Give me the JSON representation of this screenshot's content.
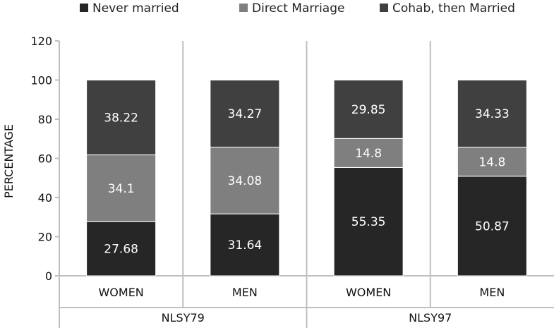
{
  "chart_data": {
    "type": "bar",
    "stacked": true,
    "ylabel": "PERCENTAGE",
    "ylim": [
      0,
      120
    ],
    "yticks": [
      "0",
      "20",
      "40",
      "60",
      "80",
      "100",
      "120"
    ],
    "grid": false,
    "legend_position": "top",
    "categories": [
      "WOMEN",
      "MEN",
      "WOMEN",
      "MEN"
    ],
    "groups": [
      {
        "label": "NLSY79",
        "categories": [
          0,
          1
        ]
      },
      {
        "label": "NLSY97",
        "categories": [
          2,
          3
        ]
      }
    ],
    "series": [
      {
        "name": "Never married",
        "color": "#262626",
        "values": [
          27.68,
          31.64,
          55.35,
          50.87
        ],
        "labels": [
          "27.68",
          "31.64",
          "55.35",
          "50.87"
        ]
      },
      {
        "name": "Direct Marriage",
        "color": "#7f7f7f",
        "values": [
          34.1,
          34.08,
          14.8,
          14.8
        ],
        "labels": [
          "34.1",
          "34.08",
          "14.8",
          "14.8"
        ]
      },
      {
        "name": "Cohab, then Married",
        "color": "#404040",
        "values": [
          38.22,
          34.27,
          29.85,
          34.33
        ],
        "labels": [
          "38.22",
          "34.27",
          "29.85",
          "34.33"
        ]
      }
    ]
  }
}
